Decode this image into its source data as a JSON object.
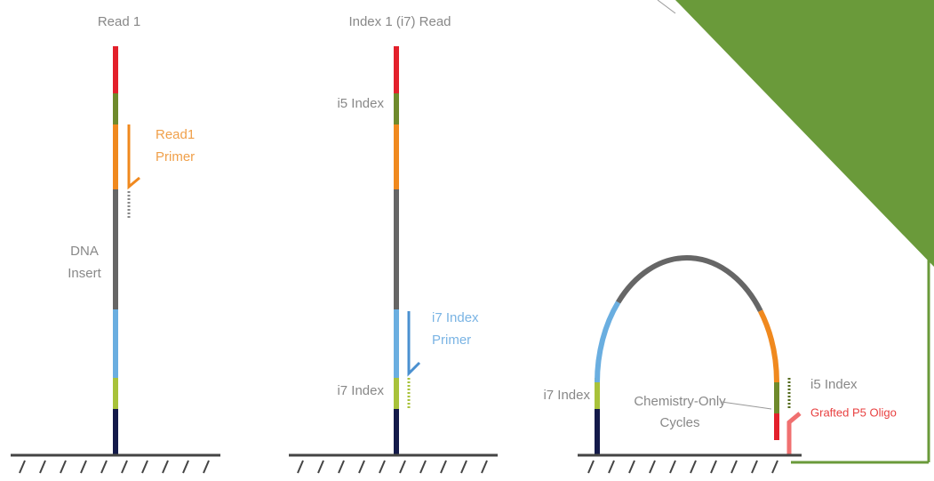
{
  "panels": [
    {
      "title": "Read 1",
      "primer": [
        "Read1",
        "Primer"
      ],
      "insert": [
        "DNA",
        "Insert"
      ]
    },
    {
      "title": "Index 1 (i7) Read",
      "i5": "i5 Index",
      "primer": [
        "i7 Index",
        "Primer"
      ],
      "i7": "i7 Index"
    },
    {
      "i7": "i7 Index",
      "cycles": [
        "Chemistry-Only",
        "Cycles"
      ],
      "i5": "i5 Index",
      "oligo": "Grafted P5 Oligo"
    }
  ]
}
